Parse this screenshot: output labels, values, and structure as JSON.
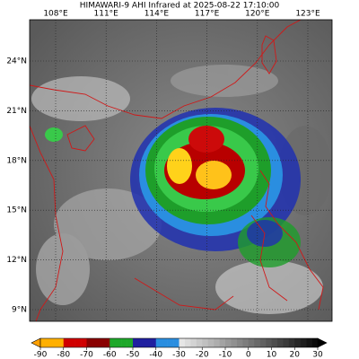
{
  "title": "HIMAWARI-9 AHI Infrared at 2025-08-22 17:10:00",
  "map": {
    "lon_labels": [
      "108°E",
      "111°E",
      "114°E",
      "117°E",
      "120°E",
      "123°E"
    ],
    "lat_labels": [
      "24°N",
      "21°N",
      "18°N",
      "15°N",
      "12°N",
      "9°N"
    ]
  },
  "colorbar": {
    "ticks": [
      -90,
      -80,
      -70,
      -60,
      -50,
      -40,
      -30,
      -20,
      -10,
      0,
      10,
      20,
      30
    ]
  }
}
